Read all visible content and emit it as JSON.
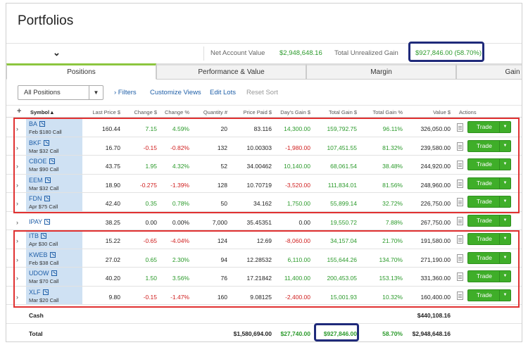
{
  "page": {
    "title": "Portfolios"
  },
  "summary": {
    "account_chevron": "⌄",
    "net_label": "Net Account Value",
    "net_value": "$2,948,648.16",
    "gain_label": "Total Unrealized Gain",
    "gain_value": "$927,846.00 (58.70%)"
  },
  "tabs": [
    {
      "label": "Positions",
      "active": true
    },
    {
      "label": "Performance & Value",
      "active": false
    },
    {
      "label": "Margin",
      "active": false
    },
    {
      "label": "Gain",
      "active": false
    }
  ],
  "toolbar": {
    "select_value": "All Positions",
    "filters": "› Filters",
    "customize": "Customize Views",
    "edit_lots": "Edit Lots",
    "reset_sort": "Reset Sort"
  },
  "columns": {
    "add": "+",
    "symbol": "Symbol▲",
    "last_price": "Last Price $",
    "change_d": "Change $",
    "change_p": "Change %",
    "quantity": "Quantity #",
    "price_paid": "Price Paid $",
    "days_gain": "Day's Gain $",
    "total_gain": "Total Gain $",
    "total_gain_p": "Total Gain %",
    "value": "Value $",
    "actions": "Actions"
  },
  "trade_label": "Trade",
  "rows": [
    {
      "symbol": "BA",
      "sub": "Feb $180 Call",
      "last": "160.44",
      "chg": "7.15",
      "chgp": "4.59%",
      "qty": "20",
      "paid": "83.116",
      "day": "14,300.00",
      "gain": "159,792.75",
      "gainp": "96.11%",
      "value": "326,050.00",
      "neg": false,
      "day_neg": false
    },
    {
      "symbol": "BKF",
      "sub": "Mar $32 Call",
      "last": "16.70",
      "chg": "-0.15",
      "chgp": "-0.82%",
      "qty": "132",
      "paid": "10.00303",
      "day": "-1,980.00",
      "gain": "107,451.55",
      "gainp": "81.32%",
      "value": "239,580.00",
      "neg": true,
      "day_neg": true
    },
    {
      "symbol": "CBOE",
      "sub": "Mar $90 Call",
      "last": "43.75",
      "chg": "1.95",
      "chgp": "4.32%",
      "qty": "52",
      "paid": "34.00462",
      "day": "10,140.00",
      "gain": "68,061.54",
      "gainp": "38.48%",
      "value": "244,920.00",
      "neg": false,
      "day_neg": false
    },
    {
      "symbol": "EEM",
      "sub": "Mar $32 Call",
      "last": "18.90",
      "chg": "-0.275",
      "chgp": "-1.39%",
      "qty": "128",
      "paid": "10.70719",
      "day": "-3,520.00",
      "gain": "111,834.01",
      "gainp": "81.56%",
      "value": "248,960.00",
      "neg": true,
      "day_neg": true
    },
    {
      "symbol": "FDN",
      "sub": "Apr $75 Call",
      "last": "42.40",
      "chg": "0.35",
      "chgp": "0.78%",
      "qty": "50",
      "paid": "34.162",
      "day": "1,750.00",
      "gain": "55,899.14",
      "gainp": "32.72%",
      "value": "226,750.00",
      "neg": false,
      "day_neg": false
    },
    {
      "symbol": "IPAY",
      "sub": "",
      "last": "38.25",
      "chg": "0.00",
      "chgp": "0.00%",
      "qty": "7,000",
      "paid": "35.45351",
      "day": "0.00",
      "gain": "19,550.72",
      "gainp": "7.88%",
      "value": "267,750.00",
      "neg": false,
      "day_neg": false,
      "plain": true
    },
    {
      "symbol": "ITB",
      "sub": "Apr $30 Call",
      "last": "15.22",
      "chg": "-0.65",
      "chgp": "-4.04%",
      "qty": "124",
      "paid": "12.69",
      "day": "-8,060.00",
      "gain": "34,157.04",
      "gainp": "21.70%",
      "value": "191,580.00",
      "neg": true,
      "day_neg": true
    },
    {
      "symbol": "KWEB",
      "sub": "Feb $38 Call",
      "last": "27.02",
      "chg": "0.65",
      "chgp": "2.30%",
      "qty": "94",
      "paid": "12.28532",
      "day": "6,110.00",
      "gain": "155,644.26",
      "gainp": "134.70%",
      "value": "271,190.00",
      "neg": false,
      "day_neg": false
    },
    {
      "symbol": "UDOW",
      "sub": "Mar $70 Call",
      "last": "40.20",
      "chg": "1.50",
      "chgp": "3.56%",
      "qty": "76",
      "paid": "17.21842",
      "day": "11,400.00",
      "gain": "200,453.05",
      "gainp": "153.13%",
      "value": "331,360.00",
      "neg": false,
      "day_neg": false
    },
    {
      "symbol": "XLF",
      "sub": "Mar $20 Call",
      "last": "9.80",
      "chg": "-0.15",
      "chgp": "-1.47%",
      "qty": "160",
      "paid": "9.08125",
      "day": "-2,400.00",
      "gain": "15,001.93",
      "gainp": "10.32%",
      "value": "160,400.00",
      "neg": true,
      "day_neg": true
    }
  ],
  "cash": {
    "label": "Cash",
    "value": "$440,108.16"
  },
  "total": {
    "label": "Total",
    "paid": "$1,580,694.00",
    "day": "$27,740.00",
    "gain": "$927,846.00",
    "gainp": "58.70%",
    "value": "$2,948,648.16"
  }
}
